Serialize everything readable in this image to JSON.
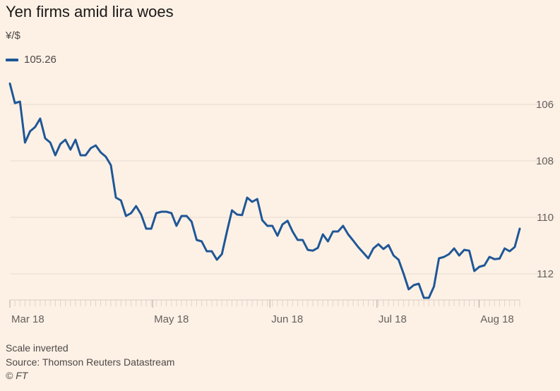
{
  "title": "Yen firms amid lira woes",
  "unit": "¥/$",
  "legend": {
    "label": "105.26",
    "color": "#1f5796"
  },
  "footer": {
    "note": "Scale inverted",
    "source": "Source: Thomson Reuters Datastream",
    "copyright": "© FT"
  },
  "chart_data": {
    "type": "line",
    "title": "Yen firms amid lira woes",
    "ylabel": "¥/$",
    "y_inverted": true,
    "ylim": [
      104.7,
      112.9
    ],
    "yticks": [
      106,
      108,
      110,
      112
    ],
    "xlim": [
      0,
      100
    ],
    "xticks": [
      {
        "label": "Mar 18",
        "pos": 0
      },
      {
        "label": "May 18",
        "pos": 28
      },
      {
        "label": "Jun 18",
        "pos": 51
      },
      {
        "label": "Jul 18",
        "pos": 72
      },
      {
        "label": "Aug 18",
        "pos": 92
      }
    ],
    "grid": true,
    "series": [
      {
        "name": "105.26",
        "color": "#1f5796",
        "values": [
          105.26,
          105.95,
          105.9,
          107.35,
          106.95,
          106.8,
          106.5,
          107.2,
          107.35,
          107.8,
          107.4,
          107.25,
          107.6,
          107.25,
          107.8,
          107.8,
          107.55,
          107.45,
          107.7,
          107.85,
          108.15,
          109.3,
          109.4,
          109.95,
          109.85,
          109.6,
          109.9,
          110.4,
          110.4,
          109.85,
          109.8,
          109.8,
          109.85,
          110.3,
          109.95,
          109.95,
          110.15,
          110.8,
          110.85,
          111.2,
          111.2,
          111.5,
          111.3,
          110.5,
          109.75,
          109.9,
          109.92,
          109.3,
          109.45,
          109.35,
          110.1,
          110.3,
          110.3,
          110.65,
          110.25,
          110.12,
          110.5,
          110.8,
          110.8,
          111.15,
          111.18,
          111.08,
          110.6,
          110.85,
          110.5,
          110.5,
          110.3,
          110.6,
          110.82,
          111.05,
          111.25,
          111.45,
          111.1,
          110.95,
          111.12,
          110.98,
          111.35,
          111.5,
          112.0,
          112.55,
          112.4,
          112.35,
          112.85,
          112.85,
          112.45,
          111.45,
          111.4,
          111.3,
          111.1,
          111.35,
          111.15,
          111.18,
          111.9,
          111.75,
          111.7,
          111.4,
          111.48,
          111.46,
          111.1,
          111.2,
          111.05,
          110.4
        ]
      }
    ]
  }
}
